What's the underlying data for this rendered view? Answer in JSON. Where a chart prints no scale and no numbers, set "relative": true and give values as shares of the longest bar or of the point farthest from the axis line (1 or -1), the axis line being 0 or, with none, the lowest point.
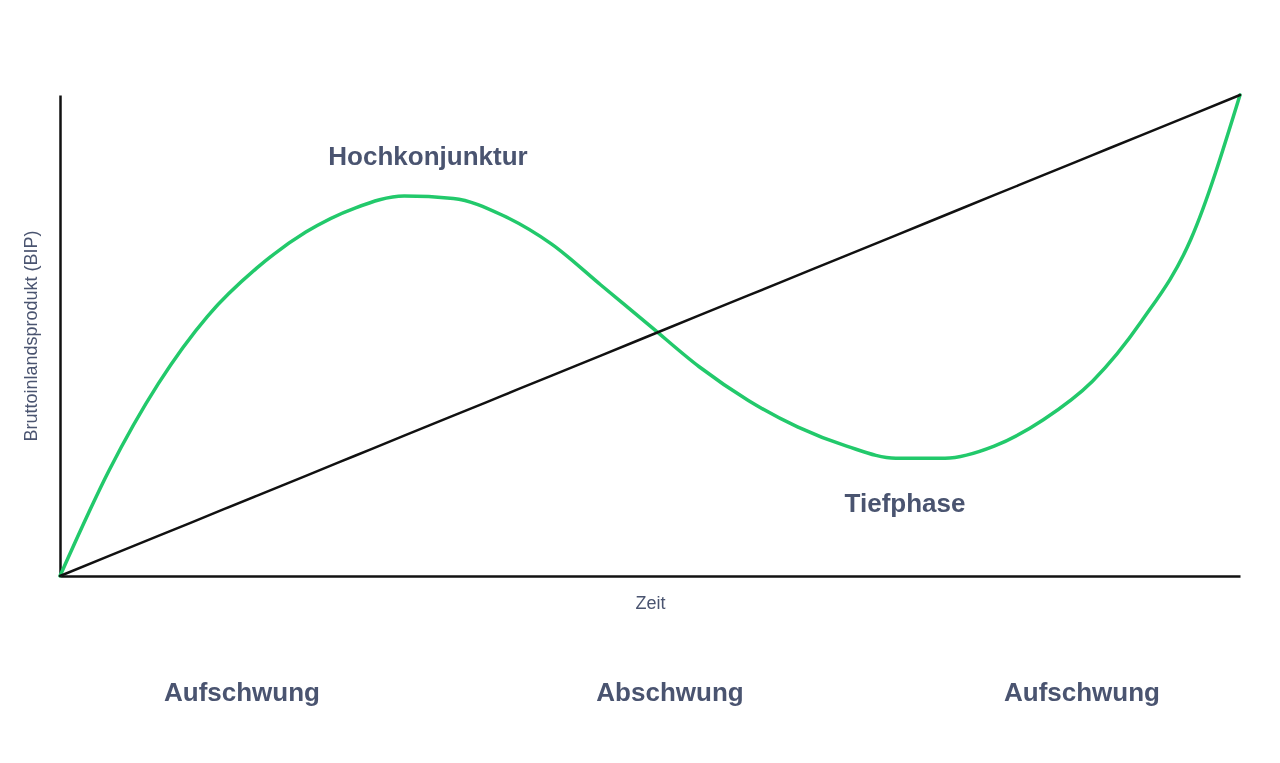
{
  "chart_data": {
    "type": "line",
    "relative": true,
    "xlabel": "Zeit",
    "ylabel": "Bruttoinlandsprodukt (BIP)",
    "categories": [
      null,
      null,
      null,
      null,
      null,
      null,
      null,
      null,
      null,
      null,
      null,
      null,
      null,
      null,
      null,
      null,
      null,
      null,
      null,
      null,
      null,
      null,
      null,
      null,
      null
    ],
    "series": [
      {
        "color": "#22c96b",
        "values": [
          0,
          0.22,
          0.4,
          0.54,
          0.64,
          0.715,
          0.765,
          0.79,
          0.785,
          0.75,
          0.69,
          0.605,
          0.52,
          0.435,
          0.365,
          0.31,
          0.27,
          0.245,
          0.245,
          0.27,
          0.325,
          0.405,
          0.53,
          0.7,
          1
        ]
      },
      {
        "color": "#111111",
        "values": [
          0,
          0.0417,
          0.0833,
          0.125,
          0.1667,
          0.2083,
          0.25,
          0.2917,
          0.3333,
          0.375,
          0.4167,
          0.4583,
          0.5,
          0.5417,
          0.5833,
          0.625,
          0.6667,
          0.7083,
          0.75,
          0.7917,
          0.8333,
          0.875,
          0.9167,
          0.9583,
          1
        ]
      }
    ],
    "annotations": [
      "Hochkonjunktur",
      "Tiefphase",
      "Aufschwung",
      "Abschwung",
      "Aufschwung"
    ]
  }
}
